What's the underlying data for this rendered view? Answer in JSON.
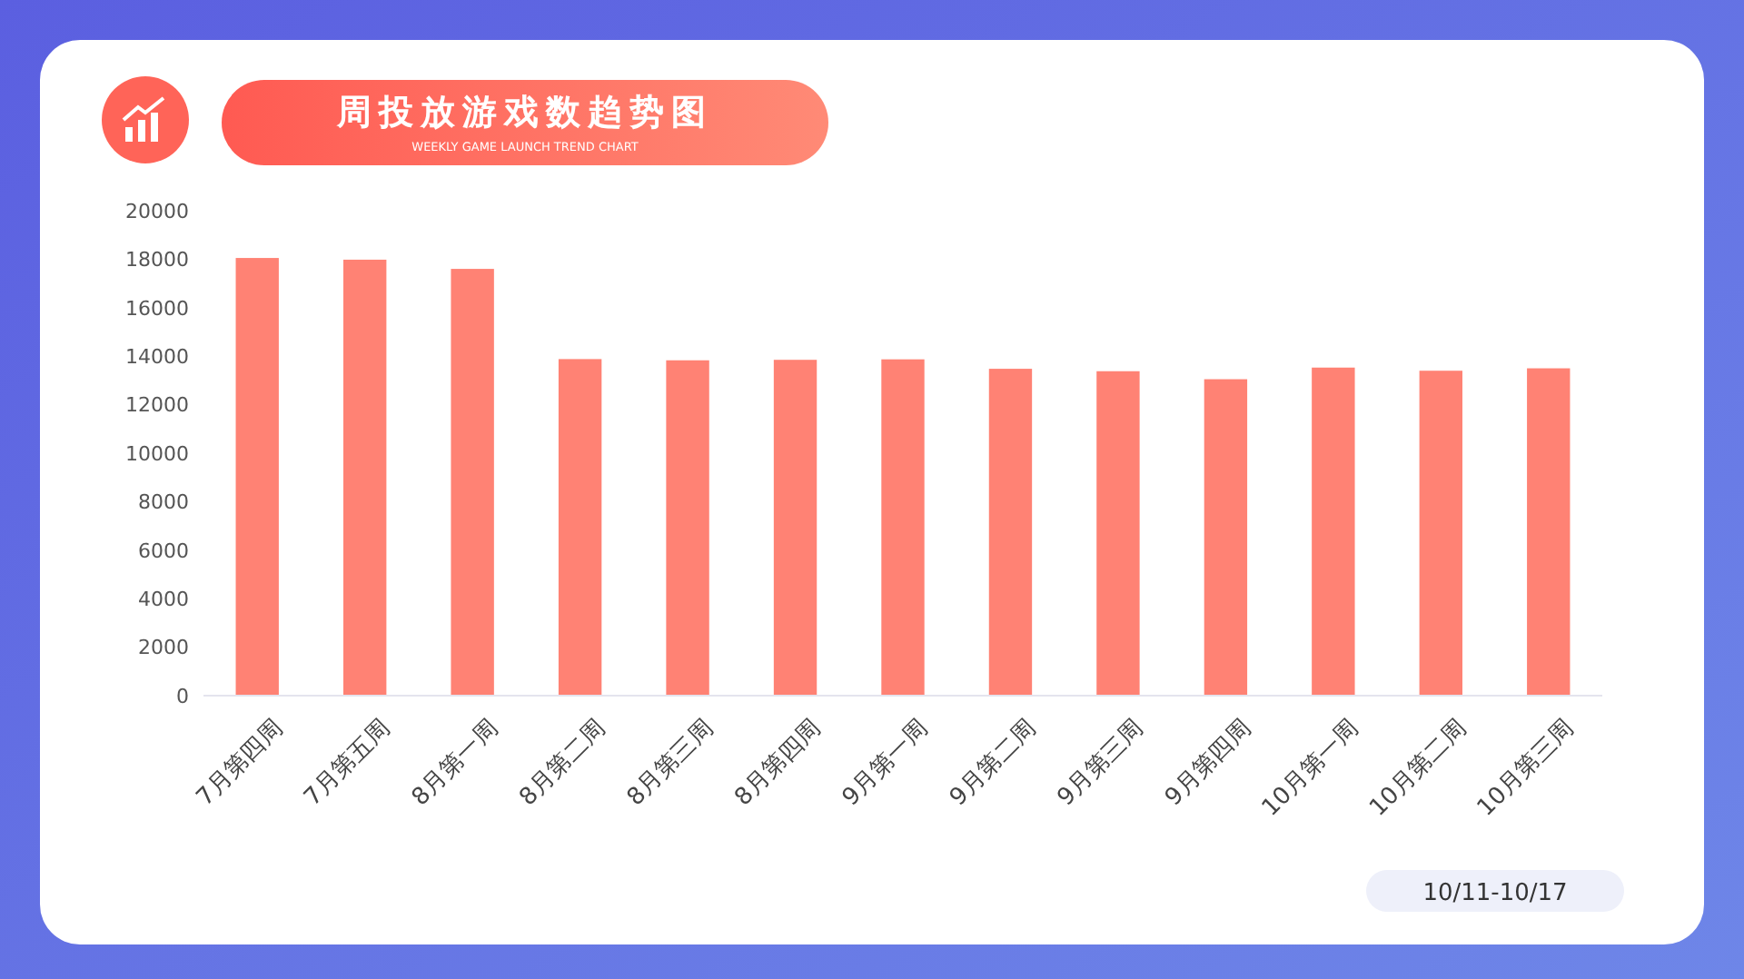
{
  "chart_data": {
    "type": "bar",
    "title": "周投放游戏数趋势图",
    "subtitle": "WEEKLY GAME LAUNCH TREND CHART",
    "categories": [
      "7月第四周",
      "7月第五周",
      "8月第一周",
      "8月第二周",
      "8月第三周",
      "8月第四周",
      "9月第一周",
      "9月第二周",
      "9月第三周",
      "9月第四周",
      "10月第一周",
      "10月第二周",
      "10月第三周"
    ],
    "values": [
      18050,
      17980,
      17600,
      13880,
      13830,
      13850,
      13870,
      13480,
      13380,
      13050,
      13530,
      13400,
      13500
    ],
    "color": "#ff8274",
    "ylim": [
      0,
      20000
    ],
    "yticks": [
      0,
      2000,
      4000,
      6000,
      8000,
      10000,
      12000,
      14000,
      16000,
      18000,
      20000
    ],
    "annotations": [
      "10/11-10/17"
    ]
  }
}
